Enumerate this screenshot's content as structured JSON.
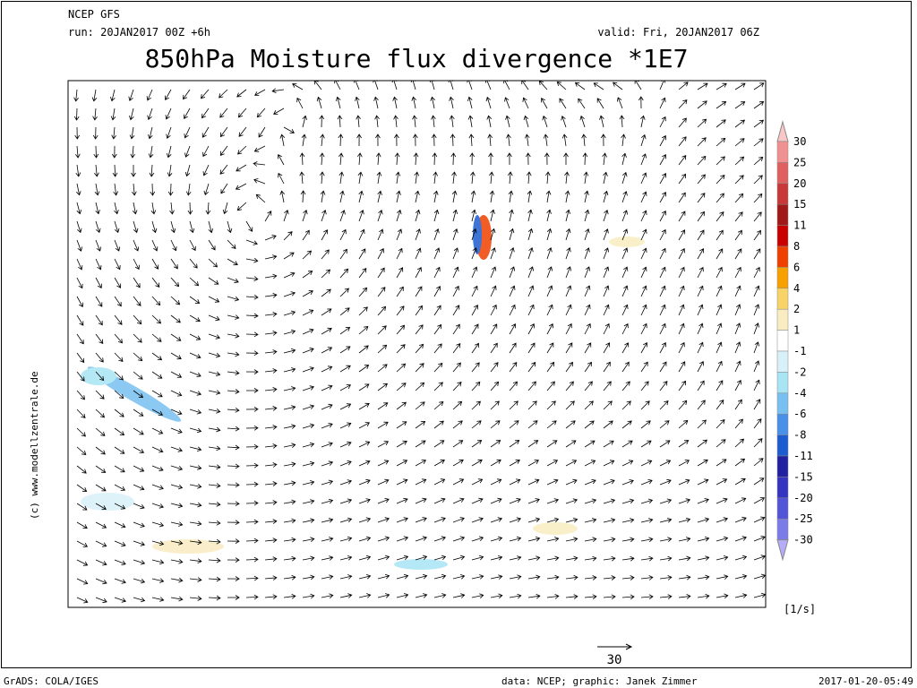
{
  "header": {
    "model": "NCEP GFS",
    "run": "run: 20JAN2017 00Z +6h",
    "valid": "valid: Fri, 20JAN2017 06Z",
    "title": "850hPa Moisture flux divergence *1E7"
  },
  "colorbar": {
    "levels": [
      30,
      25,
      20,
      15,
      11,
      8,
      6,
      4,
      2,
      1,
      -1,
      -2,
      -4,
      -6,
      -8,
      -11,
      -15,
      -20,
      -25,
      -30
    ],
    "colors": [
      "#f8c8c8",
      "#f09090",
      "#e06060",
      "#c83838",
      "#a01818",
      "#c80000",
      "#f04000",
      "#f8a000",
      "#f8d468",
      "#f8ecc0",
      "#ffffff",
      "#d8f0f8",
      "#a8e4f4",
      "#78c0f0",
      "#4890e8",
      "#1c5cd0",
      "#2020a0",
      "#3434c0",
      "#5454d8",
      "#7c7ce8",
      "#b4acf8"
    ],
    "unit": "[1/s]"
  },
  "reference_vector": {
    "value": 30
  },
  "copyright": "(c) www.modellzentrale.de",
  "footer": {
    "software": "GrADS: COLA/IGES",
    "credits": "data: NCEP; graphic: Janek Zimmer",
    "timestamp": "2017-01-20-05:49"
  }
}
